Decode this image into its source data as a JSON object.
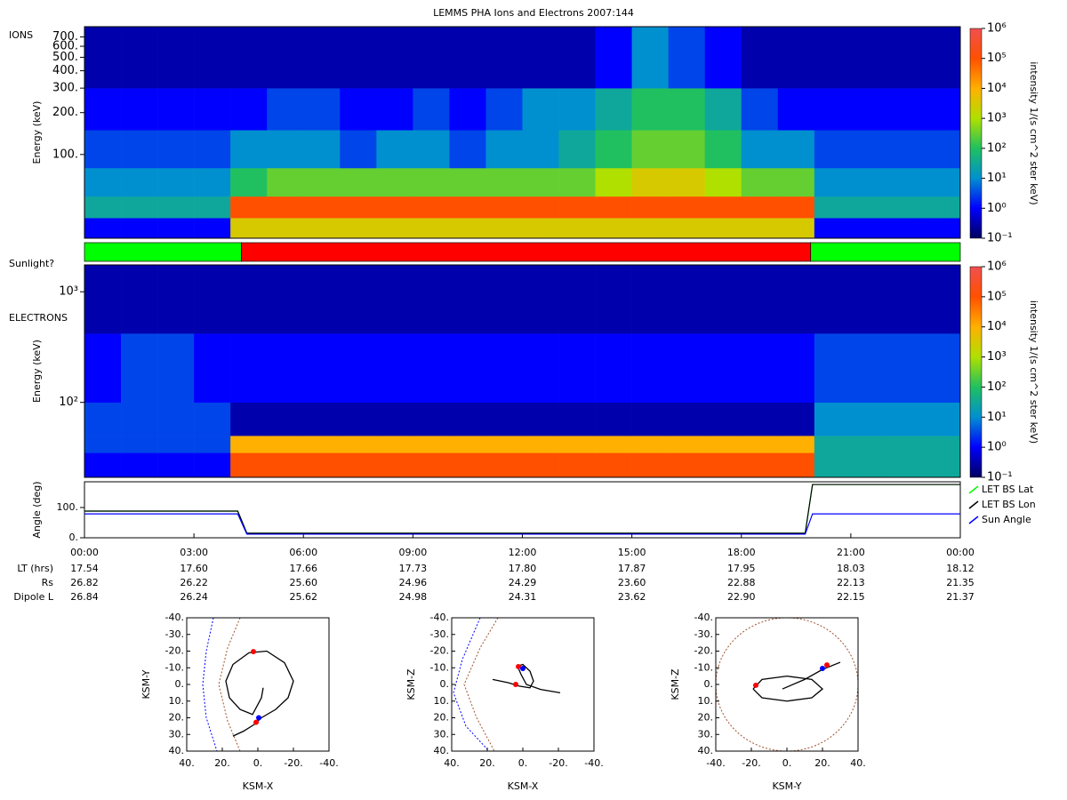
{
  "title": "LEMMS PHA Ions and Electrons  2007:144",
  "chart_data": [
    {
      "type": "heatmap",
      "label": "IONS",
      "ylabel": "Energy (keV)",
      "xlim": [
        0,
        24
      ],
      "ylim": [
        25,
        830
      ],
      "ylog": true,
      "yticks": [
        {
          "value": 100,
          "label": "100."
        },
        {
          "value": 200,
          "label": "200."
        },
        {
          "value": 300,
          "label": "300."
        },
        {
          "value": 400,
          "label": "400."
        },
        {
          "value": 500,
          "label": "500."
        },
        {
          "value": 600,
          "label": "600."
        },
        {
          "value": 700,
          "label": "700."
        }
      ],
      "x_bins": [
        0,
        1,
        2,
        3,
        4,
        5,
        6,
        7,
        8,
        9,
        10,
        11,
        12,
        13,
        14,
        15,
        16,
        17,
        18,
        19,
        20,
        21,
        22,
        23,
        24
      ],
      "y_bins": [
        25,
        35,
        50,
        80,
        150,
        300,
        830
      ],
      "z": [
        [
          1,
          1,
          1,
          1,
          3000,
          3000,
          3000,
          3000,
          3000,
          3000,
          3000,
          3000,
          3000,
          3000,
          3000,
          3000,
          3000,
          3000,
          3000,
          3000,
          1,
          1,
          1,
          1
        ],
        [
          30,
          30,
          30,
          30,
          100000,
          100000,
          100000,
          100000,
          100000,
          100000,
          100000,
          100000,
          100000,
          100000,
          100000,
          100000,
          100000,
          100000,
          100000,
          100000,
          30,
          30,
          30,
          30
        ],
        [
          10,
          10,
          10,
          10,
          100,
          300,
          300,
          300,
          300,
          300,
          300,
          300,
          300,
          300,
          1000,
          3000,
          3000,
          1000,
          300,
          300,
          10,
          10,
          10,
          10
        ],
        [
          3,
          3,
          3,
          3,
          10,
          10,
          10,
          3,
          10,
          10,
          3,
          10,
          10,
          30,
          100,
          300,
          300,
          100,
          10,
          10,
          3,
          3,
          3,
          3
        ],
        [
          1,
          1,
          1,
          1,
          1,
          3,
          3,
          1,
          1,
          3,
          1,
          3,
          10,
          10,
          30,
          100,
          100,
          30,
          3,
          1,
          1,
          1,
          1,
          1
        ],
        [
          0.3,
          0.3,
          0.3,
          0.3,
          0.3,
          0.3,
          0.3,
          0.3,
          0.3,
          0.3,
          0.3,
          0.3,
          0.3,
          0.3,
          1,
          10,
          3,
          1,
          0.3,
          0.3,
          0.3,
          0.3,
          0.3,
          0.3
        ]
      ],
      "zlim": [
        0.1,
        1000000
      ],
      "zlog": true,
      "zticks": [
        {
          "value": 0.1,
          "label": "10⁻¹"
        },
        {
          "value": 1,
          "label": "10⁰"
        },
        {
          "value": 10,
          "label": "10¹"
        },
        {
          "value": 100,
          "label": "10²"
        },
        {
          "value": 1000,
          "label": "10³"
        },
        {
          "value": 10000,
          "label": "10⁴"
        },
        {
          "value": 100000,
          "label": "10⁵"
        },
        {
          "value": 1000000,
          "label": "10⁶"
        }
      ],
      "zlabel": "intensity 1/(s cm^2 ster keV)",
      "colormap": [
        "#000060",
        "#0000ff",
        "#0090d0",
        "#20c060",
        "#b0e000",
        "#ffb000",
        "#ff5000",
        "#f05050"
      ]
    },
    {
      "type": "timeline",
      "label": "Sunlight?",
      "xlim": [
        0,
        24
      ],
      "segments": [
        {
          "start": 0,
          "end": 4.3,
          "color": "#00ff00"
        },
        {
          "start": 4.3,
          "end": 19.9,
          "color": "#ff0000"
        },
        {
          "start": 19.9,
          "end": 24,
          "color": "#00ff00"
        }
      ]
    },
    {
      "type": "heatmap",
      "label": "ELECTRONS",
      "ylabel": "Energy (keV)",
      "xlim": [
        0,
        24
      ],
      "ylim": [
        21,
        1750
      ],
      "ylog": true,
      "yticks": [
        {
          "value": 100,
          "label": "10²"
        },
        {
          "value": 1000,
          "label": "10³"
        }
      ],
      "x_bins": [
        0,
        1,
        2,
        3,
        4,
        5,
        6,
        7,
        8,
        9,
        10,
        11,
        12,
        13,
        14,
        15,
        16,
        17,
        18,
        19,
        20,
        21,
        22,
        23,
        24
      ],
      "y_bins": [
        21,
        35,
        50,
        100,
        420,
        1750
      ],
      "z": [
        [
          1,
          1,
          1,
          1,
          100000,
          100000,
          100000,
          100000,
          100000,
          100000,
          100000,
          100000,
          100000,
          100000,
          100000,
          100000,
          100000,
          100000,
          100000,
          100000,
          30,
          30,
          30,
          30
        ],
        [
          3,
          3,
          3,
          3,
          10000,
          10000,
          10000,
          10000,
          10000,
          10000,
          10000,
          10000,
          10000,
          10000,
          10000,
          10000,
          10000,
          10000,
          10000,
          10000,
          30,
          30,
          30,
          30
        ],
        [
          3,
          3,
          3,
          3,
          0.3,
          0.3,
          0.3,
          0.3,
          0.3,
          0.3,
          0.3,
          0.3,
          0.3,
          0.3,
          0.3,
          0.3,
          0.3,
          0.3,
          0.3,
          0.3,
          10,
          10,
          10,
          10
        ],
        [
          1,
          3,
          3,
          1,
          1,
          1,
          1,
          1,
          1,
          1,
          1,
          1,
          1,
          1,
          1,
          1,
          1,
          1,
          1,
          1,
          3,
          3,
          3,
          3
        ],
        [
          0.3,
          0.3,
          0.3,
          0.3,
          0.3,
          0.3,
          0.3,
          0.3,
          0.3,
          0.3,
          0.3,
          0.3,
          0.3,
          0.3,
          0.3,
          0.3,
          0.3,
          0.3,
          0.3,
          0.3,
          0.3,
          0.3,
          0.3,
          0.3
        ]
      ],
      "zlim": [
        0.1,
        1000000
      ],
      "zlog": true,
      "zticks": [
        {
          "value": 0.1,
          "label": "10⁻¹"
        },
        {
          "value": 1,
          "label": "10⁰"
        },
        {
          "value": 10,
          "label": "10¹"
        },
        {
          "value": 100,
          "label": "10²"
        },
        {
          "value": 1000,
          "label": "10³"
        },
        {
          "value": 10000,
          "label": "10⁴"
        },
        {
          "value": 100000,
          "label": "10⁵"
        },
        {
          "value": 1000000,
          "label": "10⁶"
        }
      ],
      "zlabel": "intensity 1/(s cm^2 ster keV)",
      "colormap": [
        "#000060",
        "#0000ff",
        "#0090d0",
        "#20c060",
        "#b0e000",
        "#ffb000",
        "#ff5000",
        "#f05050"
      ]
    },
    {
      "type": "line",
      "ylabel": "Angle (deg)",
      "xlim": [
        0,
        24
      ],
      "ylim": [
        0,
        185
      ],
      "yticks": [
        {
          "value": 0,
          "label": "0."
        },
        {
          "value": 100,
          "label": "100."
        }
      ],
      "xticks": [
        {
          "value": 0,
          "label": "00:00"
        },
        {
          "value": 3,
          "label": "03:00"
        },
        {
          "value": 6,
          "label": "06:00"
        },
        {
          "value": 9,
          "label": "09:00"
        },
        {
          "value": 12,
          "label": "12:00"
        },
        {
          "value": 15,
          "label": "15:00"
        },
        {
          "value": 18,
          "label": "18:00"
        },
        {
          "value": 21,
          "label": "21:00"
        },
        {
          "value": 24,
          "label": "00:00"
        }
      ],
      "x": [
        0,
        4.2,
        4.45,
        19.75,
        19.95,
        24
      ],
      "series": [
        {
          "name": "LET BS Lat",
          "color": "#00ff00",
          "values": [
            88,
            88,
            15,
            15,
            176,
            176
          ]
        },
        {
          "name": "LET BS Lon",
          "color": "#000000",
          "values": [
            88,
            88,
            15,
            15,
            176,
            176
          ]
        },
        {
          "name": "Sun Angle",
          "color": "#0000ff",
          "values": [
            79,
            79,
            12,
            12,
            79,
            79
          ]
        }
      ],
      "legend": "right"
    },
    {
      "type": "orbit",
      "xlabel": "KSM-X",
      "ylabel": "KSM-Y",
      "xlim": [
        40,
        -40
      ],
      "ylim": [
        40,
        -40
      ],
      "xticks": [
        {
          "value": 40,
          "label": "40."
        },
        {
          "value": 20,
          "label": "20."
        },
        {
          "value": 0,
          "label": "0."
        },
        {
          "value": -20,
          "label": "-20."
        },
        {
          "value": -40,
          "label": "-40."
        }
      ],
      "yticks": [
        {
          "value": -40,
          "label": "-40."
        },
        {
          "value": -30,
          "label": "-30."
        },
        {
          "value": -20,
          "label": "-20."
        },
        {
          "value": -10,
          "label": "-10."
        },
        {
          "value": 0,
          "label": "0."
        },
        {
          "value": 10,
          "label": "10."
        },
        {
          "value": 20,
          "label": "20."
        },
        {
          "value": 30,
          "label": "30."
        },
        {
          "value": 40,
          "label": "40."
        }
      ],
      "lines": [
        {
          "color": "#0000ff",
          "dash": true,
          "x": [
            25,
            29,
            31,
            29,
            23
          ],
          "y": [
            -40,
            -20,
            0,
            20,
            40
          ]
        },
        {
          "color": "#a0522d",
          "dash": true,
          "x": [
            10,
            17,
            22,
            17,
            10
          ],
          "y": [
            -40,
            -22,
            0,
            22,
            40
          ]
        },
        {
          "color": "#000000",
          "dash": false,
          "x": [
            14,
            8,
            2,
            -2,
            -10,
            -17,
            -20,
            -15,
            -5,
            5,
            14,
            18,
            16,
            10,
            3,
            -2,
            -3
          ],
          "y": [
            31,
            28,
            24,
            20,
            15,
            8,
            -2,
            -13,
            -20,
            -19,
            -12,
            -2,
            8,
            15,
            18,
            8,
            2
          ]
        }
      ],
      "circles": [],
      "points": [
        {
          "x": 2.5,
          "y": -19.7,
          "color": "#ff0000"
        },
        {
          "x": -0.5,
          "y": 20,
          "color": "#0000ff"
        },
        {
          "x": 1,
          "y": 22.7,
          "color": "#ff0000"
        }
      ]
    },
    {
      "type": "orbit",
      "xlabel": "KSM-X",
      "ylabel": "KSM-Z",
      "xlim": [
        40,
        -40
      ],
      "ylim": [
        40,
        -40
      ],
      "xticks": [
        {
          "value": 40,
          "label": "40."
        },
        {
          "value": 20,
          "label": "20."
        },
        {
          "value": 0,
          "label": "0."
        },
        {
          "value": -20,
          "label": "-20."
        },
        {
          "value": -40,
          "label": "-40."
        }
      ],
      "yticks": [
        {
          "value": -40,
          "label": "-40."
        },
        {
          "value": -30,
          "label": "-30."
        },
        {
          "value": -20,
          "label": "-20."
        },
        {
          "value": -10,
          "label": "-10."
        },
        {
          "value": 0,
          "label": "0."
        },
        {
          "value": 10,
          "label": "10."
        },
        {
          "value": 20,
          "label": "20."
        },
        {
          "value": 30,
          "label": "30."
        },
        {
          "value": 40,
          "label": "40."
        }
      ],
      "lines": [
        {
          "color": "#0000ff",
          "dash": true,
          "x": [
            24,
            34,
            39,
            32,
            19
          ],
          "y": [
            -40,
            -15,
            5,
            25,
            40
          ]
        },
        {
          "color": "#a0522d",
          "dash": true,
          "x": [
            14,
            24,
            33,
            26,
            16
          ],
          "y": [
            -40,
            -22,
            0,
            20,
            40
          ]
        },
        {
          "color": "#000000",
          "dash": false,
          "x": [
            17,
            8,
            2,
            -4,
            -6,
            -4,
            0,
            3,
            1,
            -2,
            -10,
            -21
          ],
          "y": [
            -3,
            -1,
            1,
            2,
            -2,
            -8,
            -12,
            -11,
            -6,
            0,
            3,
            5
          ]
        }
      ],
      "circles": [],
      "points": [
        {
          "x": 2.5,
          "y": -10.7,
          "color": "#ff0000"
        },
        {
          "x": 0,
          "y": -9.6,
          "color": "#0000ff"
        },
        {
          "x": 4,
          "y": 0,
          "color": "#ff0000"
        }
      ]
    },
    {
      "type": "orbit",
      "xlabel": "KSM-Y",
      "ylabel": "KSM-Z",
      "xlim": [
        -40,
        40
      ],
      "ylim": [
        40,
        -40
      ],
      "xticks": [
        {
          "value": -40,
          "label": "-40."
        },
        {
          "value": -20,
          "label": "-20."
        },
        {
          "value": 0,
          "label": "0."
        },
        {
          "value": 20,
          "label": "20."
        },
        {
          "value": 40,
          "label": "40."
        }
      ],
      "yticks": [
        {
          "value": -40,
          "label": "-40."
        },
        {
          "value": -30,
          "label": "-30."
        },
        {
          "value": -20,
          "label": "-20."
        },
        {
          "value": -10,
          "label": "-10."
        },
        {
          "value": 0,
          "label": "0."
        },
        {
          "value": 10,
          "label": "10."
        },
        {
          "value": 20,
          "label": "20."
        },
        {
          "value": 30,
          "label": "30."
        },
        {
          "value": 40,
          "label": "40."
        }
      ],
      "lines": [
        {
          "color": "#000000",
          "dash": false,
          "x": [
            -19,
            -14,
            0,
            14,
            20,
            14,
            0,
            -14,
            -19
          ],
          "y": [
            2.7,
            -3,
            -5,
            -3,
            2.7,
            8,
            10,
            8,
            2.7
          ]
        },
        {
          "color": "#000000",
          "dash": false,
          "x": [
            -2.5,
            10,
            20,
            30
          ],
          "y": [
            2.7,
            -3,
            -9,
            -13.3
          ]
        }
      ],
      "circles": [
        {
          "x": 0,
          "y": 0,
          "r": 40,
          "color": "#a0522d",
          "dash": true
        }
      ],
      "points": [
        {
          "x": -17.5,
          "y": 0.5,
          "color": "#ff0000"
        },
        {
          "x": 20,
          "y": -9.6,
          "color": "#0000ff"
        },
        {
          "x": 22.5,
          "y": -11.7,
          "color": "#ff0000"
        }
      ]
    }
  ],
  "ephemeris": [
    {
      "label": "LT (hrs)",
      "values": [
        "17.54",
        "17.60",
        "17.66",
        "17.73",
        "17.80",
        "17.87",
        "17.95",
        "18.03",
        "18.12"
      ]
    },
    {
      "label": "Rs",
      "values": [
        "26.82",
        "26.22",
        "25.60",
        "24.96",
        "24.29",
        "23.60",
        "22.88",
        "22.13",
        "21.35"
      ]
    },
    {
      "label": "Dipole L",
      "values": [
        "26.84",
        "26.24",
        "25.62",
        "24.98",
        "24.31",
        "23.62",
        "22.90",
        "22.15",
        "21.37"
      ]
    }
  ]
}
